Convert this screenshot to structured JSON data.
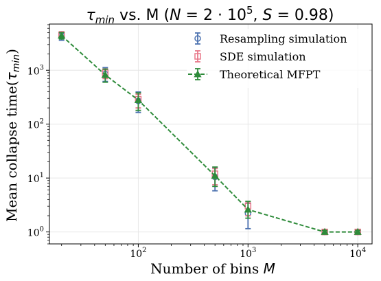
{
  "chart_data": {
    "type": "line",
    "title": {
      "tau": "τ",
      "tau_sub": "min",
      "mid": " vs. M (",
      "N": "N",
      "eq1": " = 2 · 10",
      "N_exp": "5",
      "comma": ", ",
      "S": "S",
      "eq2": " = 0.98)"
    },
    "xlabel": {
      "text": "Number of bins ",
      "var": "M"
    },
    "ylabel": {
      "text": "Mean collapse time(",
      "tau": "τ",
      "sub": "min",
      "close": ")"
    },
    "xscale": "log",
    "yscale": "log",
    "xlim": [
      15.5,
      13500
    ],
    "ylim": [
      0.6,
      7200
    ],
    "grid": true,
    "legend_position": "top-right",
    "x_ticks": [
      {
        "value": 100,
        "base": "10",
        "exp": "2"
      },
      {
        "value": 1000,
        "base": "10",
        "exp": "3"
      },
      {
        "value": 10000,
        "base": "10",
        "exp": "4"
      }
    ],
    "y_ticks": [
      {
        "value": 1,
        "base": "10",
        "exp": "0"
      },
      {
        "value": 10,
        "base": "10",
        "exp": "1"
      },
      {
        "value": 100,
        "base": "10",
        "exp": "2"
      },
      {
        "value": 1000,
        "base": "10",
        "exp": "3"
      }
    ],
    "series": [
      {
        "name": "Resampling simulation",
        "color": "#4c72b0",
        "marker": "circle",
        "line": "none",
        "x": [
          20,
          50,
          100,
          500,
          1000,
          5000,
          10000
        ],
        "y": [
          4400,
          850,
          270,
          10.5,
          2.2,
          1.0,
          1.0
        ],
        "yerr_low": [
          3600,
          620,
          165,
          5.8,
          1.15,
          0.9,
          0.9
        ],
        "yerr_high": [
          5100,
          1120,
          395,
          15.5,
          3.4,
          1.1,
          1.1
        ]
      },
      {
        "name": "SDE simulation",
        "color": "#e8788a",
        "marker": "square",
        "line": "none",
        "x": [
          20,
          50,
          100,
          500,
          1000,
          5000,
          10000
        ],
        "y": [
          4500,
          900,
          290,
          12,
          3.0,
          1.0,
          1.0
        ],
        "yerr_low": [
          3900,
          700,
          200,
          7.5,
          2.0,
          0.92,
          0.92
        ],
        "yerr_high": [
          5200,
          1060,
          360,
          15,
          3.6,
          1.08,
          1.08
        ]
      },
      {
        "name": "Theoretical MFPT",
        "color": "#2e8b3a",
        "marker": "triangle",
        "line": "dashed",
        "x": [
          20,
          50,
          100,
          500,
          1000,
          5000,
          10000
        ],
        "y": [
          4400,
          820,
          280,
          11,
          2.6,
          1.0,
          1.0
        ],
        "yerr_low": [
          3800,
          600,
          180,
          7,
          1.8,
          0.93,
          0.93
        ],
        "yerr_high": [
          5000,
          1050,
          380,
          16,
          3.7,
          1.07,
          1.07
        ]
      }
    ]
  }
}
